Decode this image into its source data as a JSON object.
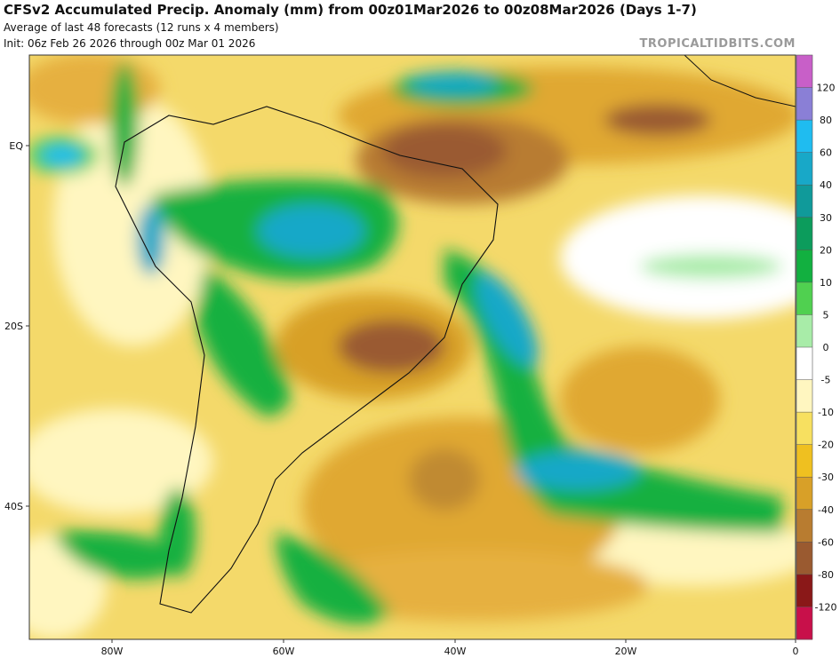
{
  "header": {
    "title": "CFSv2 Accumulated Precip. Anomaly (mm) from 00z01Mar2026 to 00z08Mar2026 (Days 1-7)",
    "subtitle": "Average of last 48 forecasts (12 runs x 4 members)",
    "init": "Init: 06z Feb 26 2026 through 00z Mar 01 2026",
    "credit": "TROPICALTIDBITS.COM"
  },
  "map": {
    "lat_labels": [
      "EQ",
      "20S",
      "40S"
    ],
    "lon_labels": [
      "80W",
      "60W",
      "40W",
      "20W",
      "0"
    ]
  },
  "colorbar": {
    "labels": [
      120,
      80,
      60,
      40,
      30,
      20,
      10,
      5,
      0,
      -5,
      -10,
      -20,
      -30,
      -40,
      -60,
      -80,
      -120
    ],
    "colors": [
      "#c85fc8",
      "#8a7fd6",
      "#1fbcf0",
      "#18a8c8",
      "#109a9a",
      "#0c9c5c",
      "#12b040",
      "#50d050",
      "#a8eca8",
      "#ffffff",
      "#fff6c0",
      "#f7e060",
      "#efc020",
      "#d8a028",
      "#b87c30",
      "#9a5a30",
      "#8a1818",
      "#c8104a"
    ]
  }
}
